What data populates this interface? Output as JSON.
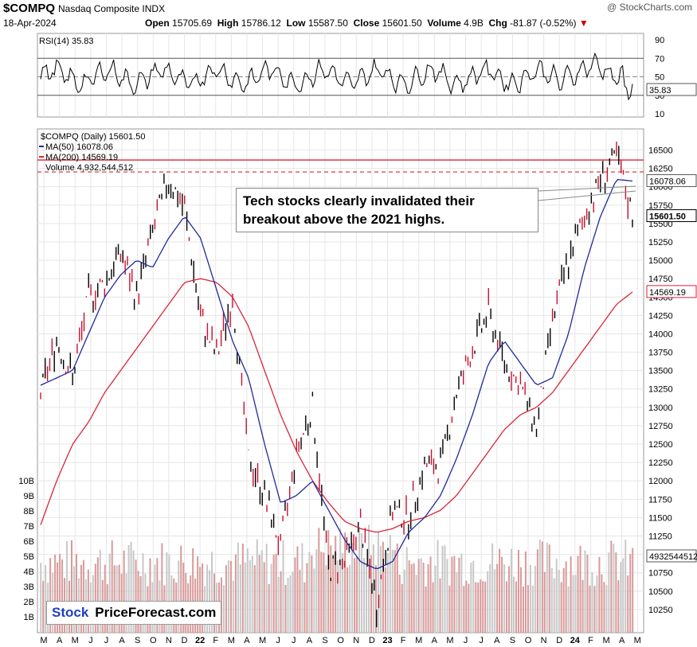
{
  "header": {
    "symbol": "$COMPQ",
    "name": "Nasdaq Composite INDX",
    "date": "18-Apr-2024",
    "ohlc": {
      "open_label": "Open",
      "open": "15705.69",
      "high_label": "High",
      "high": "15786.12",
      "low_label": "Low",
      "low": "15587.50",
      "close_label": "Close",
      "close": "15601.50",
      "volume_label": "Volume",
      "volume": "4.9B",
      "chg_label": "Chg",
      "chg": "-81.87 (-0.52%)"
    },
    "credit": "@ StockCharts.com",
    "down_arrow": "▼"
  },
  "rsi": {
    "label": "RSI(14) 35.83",
    "value_tag": "35.83",
    "levels": [
      70,
      50,
      30
    ],
    "ticks": [
      "90",
      "70",
      "50",
      "30",
      "10"
    ]
  },
  "legend": {
    "price": "$COMPQ (Daily) 15601.50",
    "ma50": "MA(50) 16078.06",
    "ma200": "MA(200) 14569.19",
    "volume": "Volume 4,932,544,512"
  },
  "price_tags": {
    "ma50": "16078.06",
    "close": "15601.50",
    "ma200": "14569.19",
    "volume": "4932544512"
  },
  "callout": {
    "line1": "Tech stocks clearly invalidated their",
    "line2": "breakout above the 2021 highs."
  },
  "brand": {
    "stock": "Stock",
    "rest": "PriceForecast.com"
  },
  "colors": {
    "ma50": "#1f2a9c",
    "ma200": "#d8263a",
    "up": "#000000",
    "down": "#c8102e",
    "volume": "#c8c8c8"
  },
  "chart_data": {
    "type": "candlestick",
    "title": "$COMPQ (Daily) 15601.50",
    "y_ticks": [
      10250,
      10500,
      10750,
      11000,
      11250,
      11500,
      11750,
      12000,
      12250,
      12500,
      12750,
      13000,
      13250,
      13500,
      13750,
      14000,
      14250,
      14500,
      14750,
      15000,
      15250,
      15500,
      15750,
      16000,
      16250,
      16500
    ],
    "ylim": [
      10000,
      16700
    ],
    "volume_ticks": [
      "10B",
      "9B",
      "8B",
      "7B",
      "6B",
      "5B",
      "4B",
      "3B",
      "2B",
      "1B"
    ],
    "x_tick_labels": [
      "M",
      "A",
      "M",
      "J",
      "J",
      "A",
      "S",
      "O",
      "N",
      "D",
      "22",
      "F",
      "M",
      "A",
      "M",
      "J",
      "J",
      "A",
      "S",
      "O",
      "N",
      "D",
      "23",
      "F",
      "M",
      "A",
      "M",
      "J",
      "J",
      "A",
      "S",
      "O",
      "N",
      "D",
      "24",
      "F",
      "M",
      "A",
      "M"
    ],
    "resistance_level": 16212,
    "ma50_level": 16078.06,
    "price_series": [
      {
        "x": "2021-03",
        "y": 13200
      },
      {
        "x": "2021-04",
        "y": 13900
      },
      {
        "x": "2021-05",
        "y": 13400
      },
      {
        "x": "2021-06",
        "y": 14500
      },
      {
        "x": "2021-07",
        "y": 14700
      },
      {
        "x": "2021-08",
        "y": 15100
      },
      {
        "x": "2021-09",
        "y": 14500
      },
      {
        "x": "2021-10",
        "y": 15400
      },
      {
        "x": "2021-11",
        "y": 16100
      },
      {
        "x": "2021-12",
        "y": 15700
      },
      {
        "x": "2022-01",
        "y": 14200
      },
      {
        "x": "2022-02",
        "y": 13700
      },
      {
        "x": "2022-03",
        "y": 14500
      },
      {
        "x": "2022-04",
        "y": 12300
      },
      {
        "x": "2022-05",
        "y": 11800
      },
      {
        "x": "2022-06",
        "y": 11100
      },
      {
        "x": "2022-07",
        "y": 12400
      },
      {
        "x": "2022-08",
        "y": 13000
      },
      {
        "x": "2022-09",
        "y": 10800
      },
      {
        "x": "2022-10",
        "y": 10900
      },
      {
        "x": "2022-11",
        "y": 11400
      },
      {
        "x": "2022-12",
        "y": 10300
      },
      {
        "x": "2023-01",
        "y": 11600
      },
      {
        "x": "2023-02",
        "y": 11500
      },
      {
        "x": "2023-03",
        "y": 12200
      },
      {
        "x": "2023-04",
        "y": 12200
      },
      {
        "x": "2023-05",
        "y": 13200
      },
      {
        "x": "2023-06",
        "y": 13800
      },
      {
        "x": "2023-07",
        "y": 14300
      },
      {
        "x": "2023-08",
        "y": 13600
      },
      {
        "x": "2023-09",
        "y": 13300
      },
      {
        "x": "2023-10",
        "y": 12700
      },
      {
        "x": "2023-11",
        "y": 14200
      },
      {
        "x": "2023-12",
        "y": 15000
      },
      {
        "x": "2024-01",
        "y": 15600
      },
      {
        "x": "2024-02",
        "y": 16100
      },
      {
        "x": "2024-03",
        "y": 16400
      },
      {
        "x": "2024-04",
        "y": 15601.5
      }
    ],
    "ma50_series": [
      13300,
      13400,
      13500,
      14000,
      14500,
      14800,
      15000,
      14900,
      15300,
      15600,
      15300,
      14600,
      13900,
      13400,
      12500,
      11700,
      11800,
      12000,
      11600,
      11200,
      10900,
      10800,
      10900,
      11300,
      11500,
      11800,
      12300,
      12900,
      13600,
      13900,
      13600,
      13300,
      13400,
      14000,
      14900,
      15600,
      16100,
      16078
    ],
    "ma200_series": [
      11400,
      12000,
      12500,
      12800,
      13200,
      13500,
      13800,
      14100,
      14400,
      14700,
      14750,
      14700,
      14500,
      14100,
      13500,
      12900,
      12400,
      12000,
      11700,
      11450,
      11350,
      11300,
      11350,
      11450,
      11500,
      11600,
      11800,
      12100,
      12400,
      12700,
      12900,
      13000,
      13200,
      13500,
      13800,
      14100,
      14400,
      14569
    ]
  }
}
